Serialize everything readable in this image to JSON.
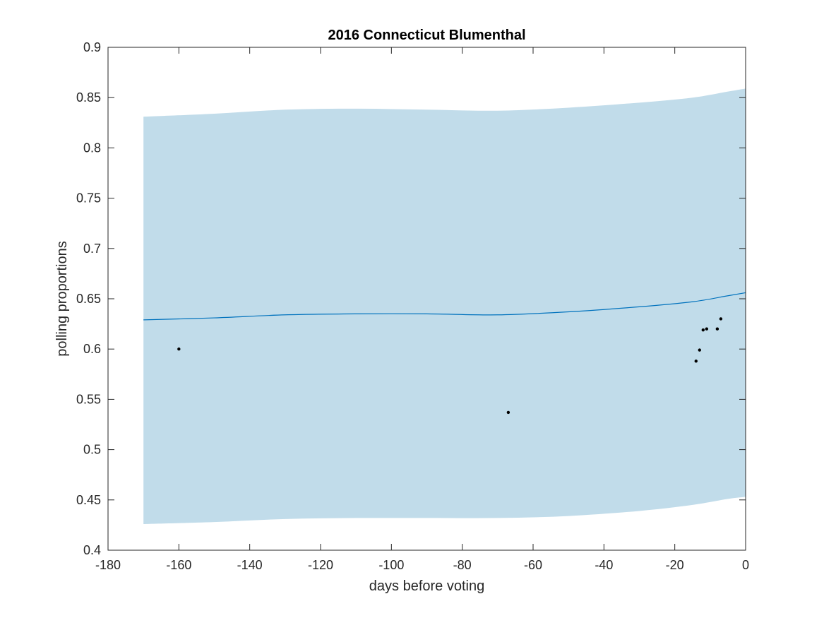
{
  "chart_data": {
    "type": "line",
    "title": "2016 Connecticut Blumenthal",
    "xlabel": "days before voting",
    "ylabel": "polling proportions",
    "xlim": [
      -180,
      0
    ],
    "ylim": [
      0.4,
      0.9
    ],
    "xticks": [
      -180,
      -160,
      -140,
      -120,
      -100,
      -80,
      -60,
      -40,
      -20,
      0
    ],
    "yticks": [
      0.4,
      0.45,
      0.5,
      0.55,
      0.6,
      0.65,
      0.7,
      0.75,
      0.8,
      0.85,
      0.9
    ],
    "xtick_labels": [
      "-180",
      "-160",
      "-140",
      "-120",
      "-100",
      "-80",
      "-60",
      "-40",
      "-20",
      "0"
    ],
    "ytick_labels": [
      "0.4",
      "0.45",
      "0.5",
      "0.55",
      "0.6",
      "0.65",
      "0.7",
      "0.75",
      "0.8",
      "0.85",
      "0.9"
    ],
    "grid": false,
    "colors": {
      "band": "#c1dcea",
      "line": "#0072bd",
      "points": "#000000",
      "axes": "#262626"
    },
    "mean_line": {
      "x": [
        -170,
        -150,
        -130,
        -110,
        -90,
        -70,
        -50,
        -30,
        -15,
        -5,
        0
      ],
      "y": [
        0.629,
        0.631,
        0.634,
        0.635,
        0.635,
        0.634,
        0.637,
        0.642,
        0.647,
        0.653,
        0.656
      ]
    },
    "band": {
      "x": [
        -170,
        -150,
        -130,
        -110,
        -90,
        -70,
        -50,
        -30,
        -15,
        -5,
        0
      ],
      "upper": [
        0.831,
        0.834,
        0.838,
        0.839,
        0.838,
        0.837,
        0.84,
        0.845,
        0.85,
        0.856,
        0.859
      ],
      "lower": [
        0.426,
        0.428,
        0.431,
        0.432,
        0.432,
        0.432,
        0.434,
        0.439,
        0.445,
        0.451,
        0.453
      ]
    },
    "points": [
      {
        "x": -160,
        "y": 0.6
      },
      {
        "x": -67,
        "y": 0.537
      },
      {
        "x": -14,
        "y": 0.588
      },
      {
        "x": -13,
        "y": 0.599
      },
      {
        "x": -12,
        "y": 0.619
      },
      {
        "x": -11,
        "y": 0.62
      },
      {
        "x": -8,
        "y": 0.62
      },
      {
        "x": -7,
        "y": 0.63
      }
    ]
  }
}
